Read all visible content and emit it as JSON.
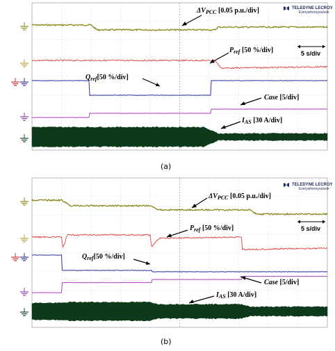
{
  "brand": {
    "name": "TELEDYNE LECROY",
    "tagline": "Everywhereyoulook"
  },
  "timebase": "5 s/div",
  "labels": {
    "dv_sym": "ΔV",
    "dv_sub": "PCC",
    "dv_scale": " [0.05 p.u./div]",
    "p_sym": "P",
    "p_sub": "ref",
    "p_scale": " [50 %/div]",
    "q_sym": "Q",
    "q_sub": "ref",
    "q_scale": "[50 %/div]",
    "case": "Case",
    "case_scale": " [5/div]",
    "ias_sym": "I",
    "ias_sub": "AS",
    "ias_scale": " [30 A/div]"
  },
  "colors": {
    "dv": "#8a8a1e",
    "p": "#e05050",
    "q": "#3030a0",
    "case": "#b040c0",
    "ias": "#0d3a1a",
    "grid": "#bbbbbb",
    "ground_dv": "#8a8a1e",
    "ground_p": "#c0a040",
    "ground_q_red": "#d03030",
    "ground_q_blue": "#3030a0",
    "ground_case": "#9040b0",
    "ground_ias": "#1a4a2a"
  },
  "chart_data": [
    {
      "type": "line",
      "panel": "(a)",
      "caption": "(a)",
      "x_divisions": 10,
      "x_unit": "div (5 s/div)",
      "series": [
        {
          "key": "dv",
          "points": [
            [
              0,
              0
            ],
            [
              2.0,
              0
            ],
            [
              2.2,
              -0.35
            ],
            [
              6.2,
              -0.35
            ],
            [
              6.3,
              -0.15
            ],
            [
              10,
              -0.15
            ]
          ]
        },
        {
          "key": "p",
          "points": [
            [
              0,
              0
            ],
            [
              6.2,
              0
            ],
            [
              6.4,
              -0.55
            ],
            [
              10,
              -0.45
            ]
          ]
        },
        {
          "key": "q",
          "points": [
            [
              0,
              0
            ],
            [
              1.95,
              0
            ],
            [
              1.95,
              -1
            ],
            [
              6.05,
              -1
            ],
            [
              6.05,
              0
            ],
            [
              10,
              0
            ]
          ]
        },
        {
          "key": "case",
          "points": [
            [
              0,
              0
            ],
            [
              1.95,
              0
            ],
            [
              1.95,
              0.3
            ],
            [
              6.05,
              0.3
            ],
            [
              6.05,
              0.6
            ],
            [
              10,
              0.6
            ]
          ]
        },
        {
          "key": "ias",
          "envelope": [
            [
              0,
              1
            ],
            [
              5.8,
              1
            ],
            [
              6.3,
              0.35
            ],
            [
              10,
              0.35
            ]
          ]
        }
      ]
    },
    {
      "type": "line",
      "panel": "(b)",
      "caption": "(b)",
      "x_divisions": 10,
      "x_unit": "div (5 s/div)",
      "series": [
        {
          "key": "dv",
          "points": [
            [
              0,
              0
            ],
            [
              1.0,
              0
            ],
            [
              1.3,
              -0.4
            ],
            [
              4.0,
              -0.4
            ],
            [
              4.3,
              -0.7
            ],
            [
              7.4,
              -0.7
            ],
            [
              7.6,
              -1.0
            ],
            [
              10,
              -1.0
            ]
          ]
        },
        {
          "key": "p",
          "points": [
            [
              0,
              0
            ],
            [
              1.0,
              0
            ],
            [
              1.05,
              -0.8
            ],
            [
              1.2,
              0.15
            ],
            [
              4.0,
              0.15
            ],
            [
              4.05,
              -0.7
            ],
            [
              4.3,
              -0.1
            ],
            [
              7.1,
              0
            ],
            [
              7.1,
              -0.9
            ],
            [
              10,
              -0.8
            ]
          ]
        },
        {
          "key": "q",
          "points": [
            [
              0,
              0
            ],
            [
              1.0,
              0
            ],
            [
              1.0,
              -1.1
            ],
            [
              4.05,
              -1.1
            ],
            [
              4.05,
              -1.2
            ],
            [
              10,
              -1.2
            ]
          ]
        },
        {
          "key": "case",
          "points": [
            [
              0,
              0
            ],
            [
              1.0,
              0
            ],
            [
              1.0,
              0.8
            ],
            [
              4.05,
              0.8
            ],
            [
              4.05,
              1.05
            ],
            [
              7.1,
              1.05
            ],
            [
              7.1,
              1.3
            ],
            [
              10,
              1.3
            ]
          ]
        },
        {
          "key": "ias",
          "envelope": [
            [
              0,
              1
            ],
            [
              1.0,
              1
            ],
            [
              1.3,
              1.1
            ],
            [
              4.0,
              1.1
            ],
            [
              4.3,
              0.85
            ],
            [
              7.1,
              0.85
            ],
            [
              7.4,
              0.55
            ],
            [
              10,
              0.55
            ]
          ]
        }
      ]
    }
  ]
}
